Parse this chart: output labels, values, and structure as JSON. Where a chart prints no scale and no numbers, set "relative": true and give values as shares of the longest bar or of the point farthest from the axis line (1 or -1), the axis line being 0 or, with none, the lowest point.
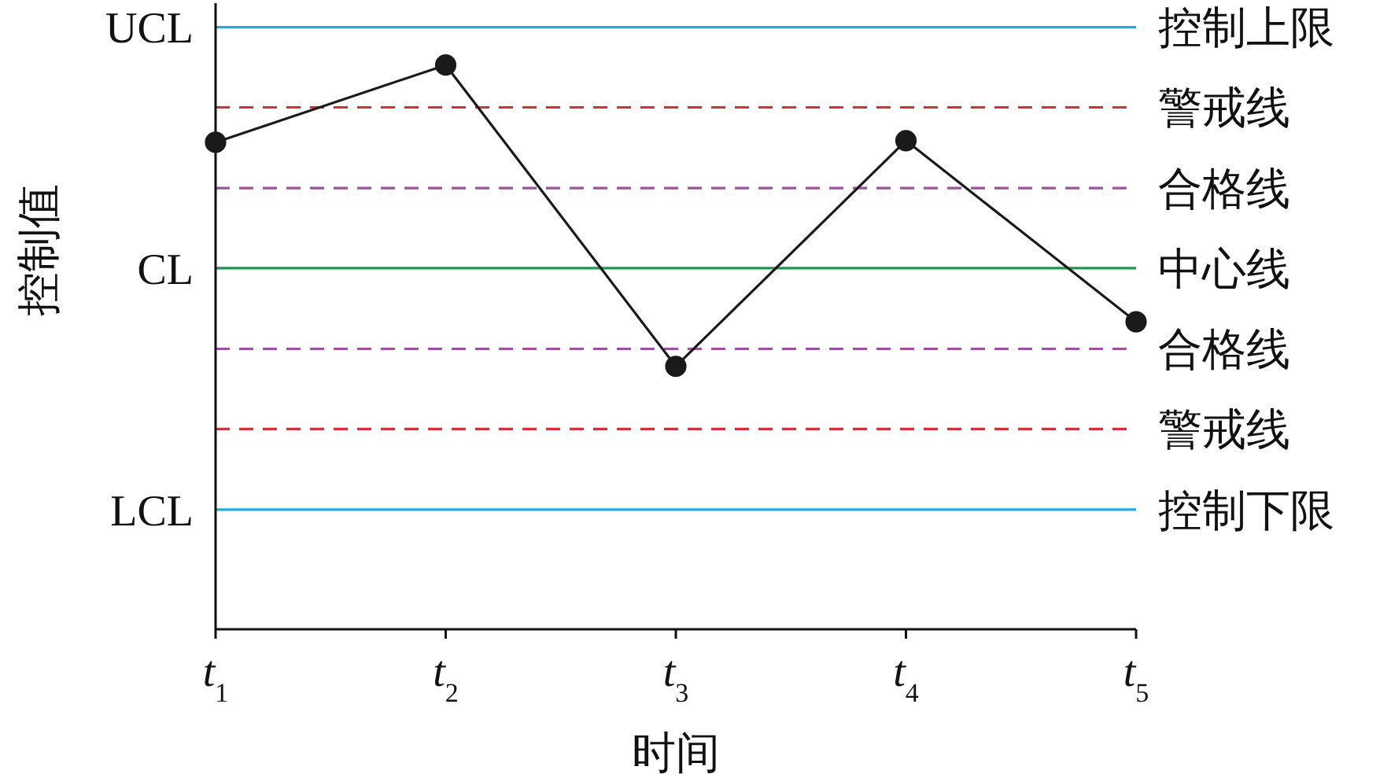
{
  "chart_data": {
    "type": "line",
    "relative": true,
    "xlabel": "时间",
    "ylabel": "控制值",
    "categories": [
      "t$_{1}$",
      "t$_{2}$",
      "t$_{3}$",
      "t$_{4}$",
      "t$_{5}$"
    ],
    "series": [
      {
        "color": "#1a1a1a",
        "values": [
          0.863,
          1,
          0.466,
          0.866,
          0.545
        ]
      }
    ],
    "marker": "circle",
    "line_style": "solid",
    "grid": false,
    "legend": false,
    "ref_lines": [
      {
        "axis": "y",
        "value": 1.067,
        "label": "控制上限",
        "color": "#29a8e0",
        "line_style": "solid"
      },
      {
        "axis": "y",
        "value": 0.925,
        "label": "警戒线",
        "color": "#d0323a",
        "line_style": "dashed"
      },
      {
        "axis": "y",
        "value": 0.782,
        "label": "合格线",
        "color": "#a050a0",
        "line_style": "dashed"
      },
      {
        "axis": "y",
        "value": 0.64,
        "label": "中心线",
        "color": "#1a9a50",
        "line_style": "solid"
      },
      {
        "axis": "y",
        "value": 0.497,
        "label": "合格线",
        "color": "#a050a0",
        "line_style": "dashed"
      },
      {
        "axis": "y",
        "value": 0.355,
        "label": "警戒线",
        "color": "#d0323a",
        "line_style": "dashed"
      },
      {
        "axis": "y",
        "value": 0.212,
        "label": "控制下限",
        "color": "#29a8e0",
        "line_style": "solid"
      }
    ],
    "annotations": [
      "UCL",
      "CL",
      "LCL"
    ]
  }
}
